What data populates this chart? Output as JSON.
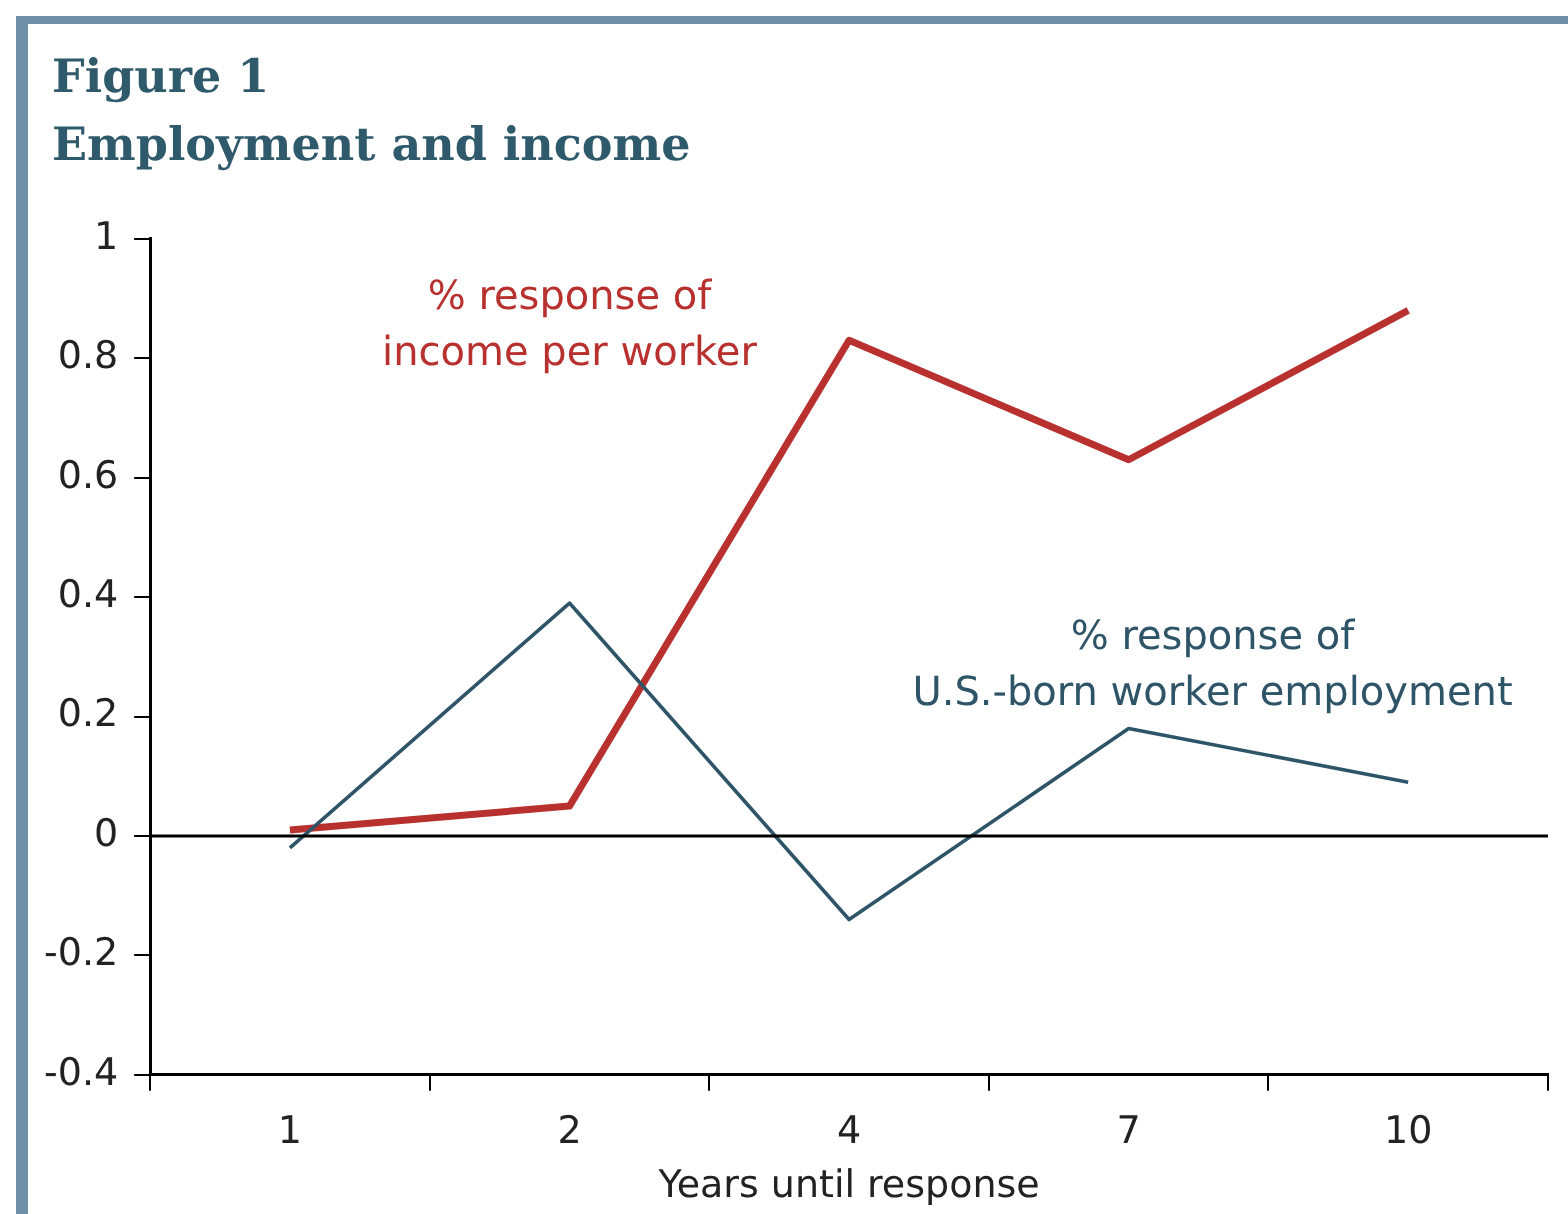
{
  "chart_data": {
    "type": "line",
    "title": "Figure 1",
    "subtitle": "Employment and income",
    "xlabel": "Years until response",
    "categories": [
      "1",
      "2",
      "4",
      "7",
      "10"
    ],
    "series": [
      {
        "name": "% response of income per worker",
        "color": "#b8312f",
        "values": [
          0.01,
          0.05,
          0.83,
          0.63,
          0.88
        ]
      },
      {
        "name": "% response of U.S.-born worker employment",
        "color": "#2e5468",
        "values": [
          -0.02,
          0.39,
          -0.14,
          0.18,
          0.09
        ]
      }
    ],
    "ylim": [
      -0.4,
      1
    ],
    "yticks": [
      -0.4,
      -0.2,
      0,
      0.2,
      0.4,
      0.6,
      0.8,
      1
    ],
    "legend": false,
    "marker": "none",
    "line_style": "solid"
  }
}
